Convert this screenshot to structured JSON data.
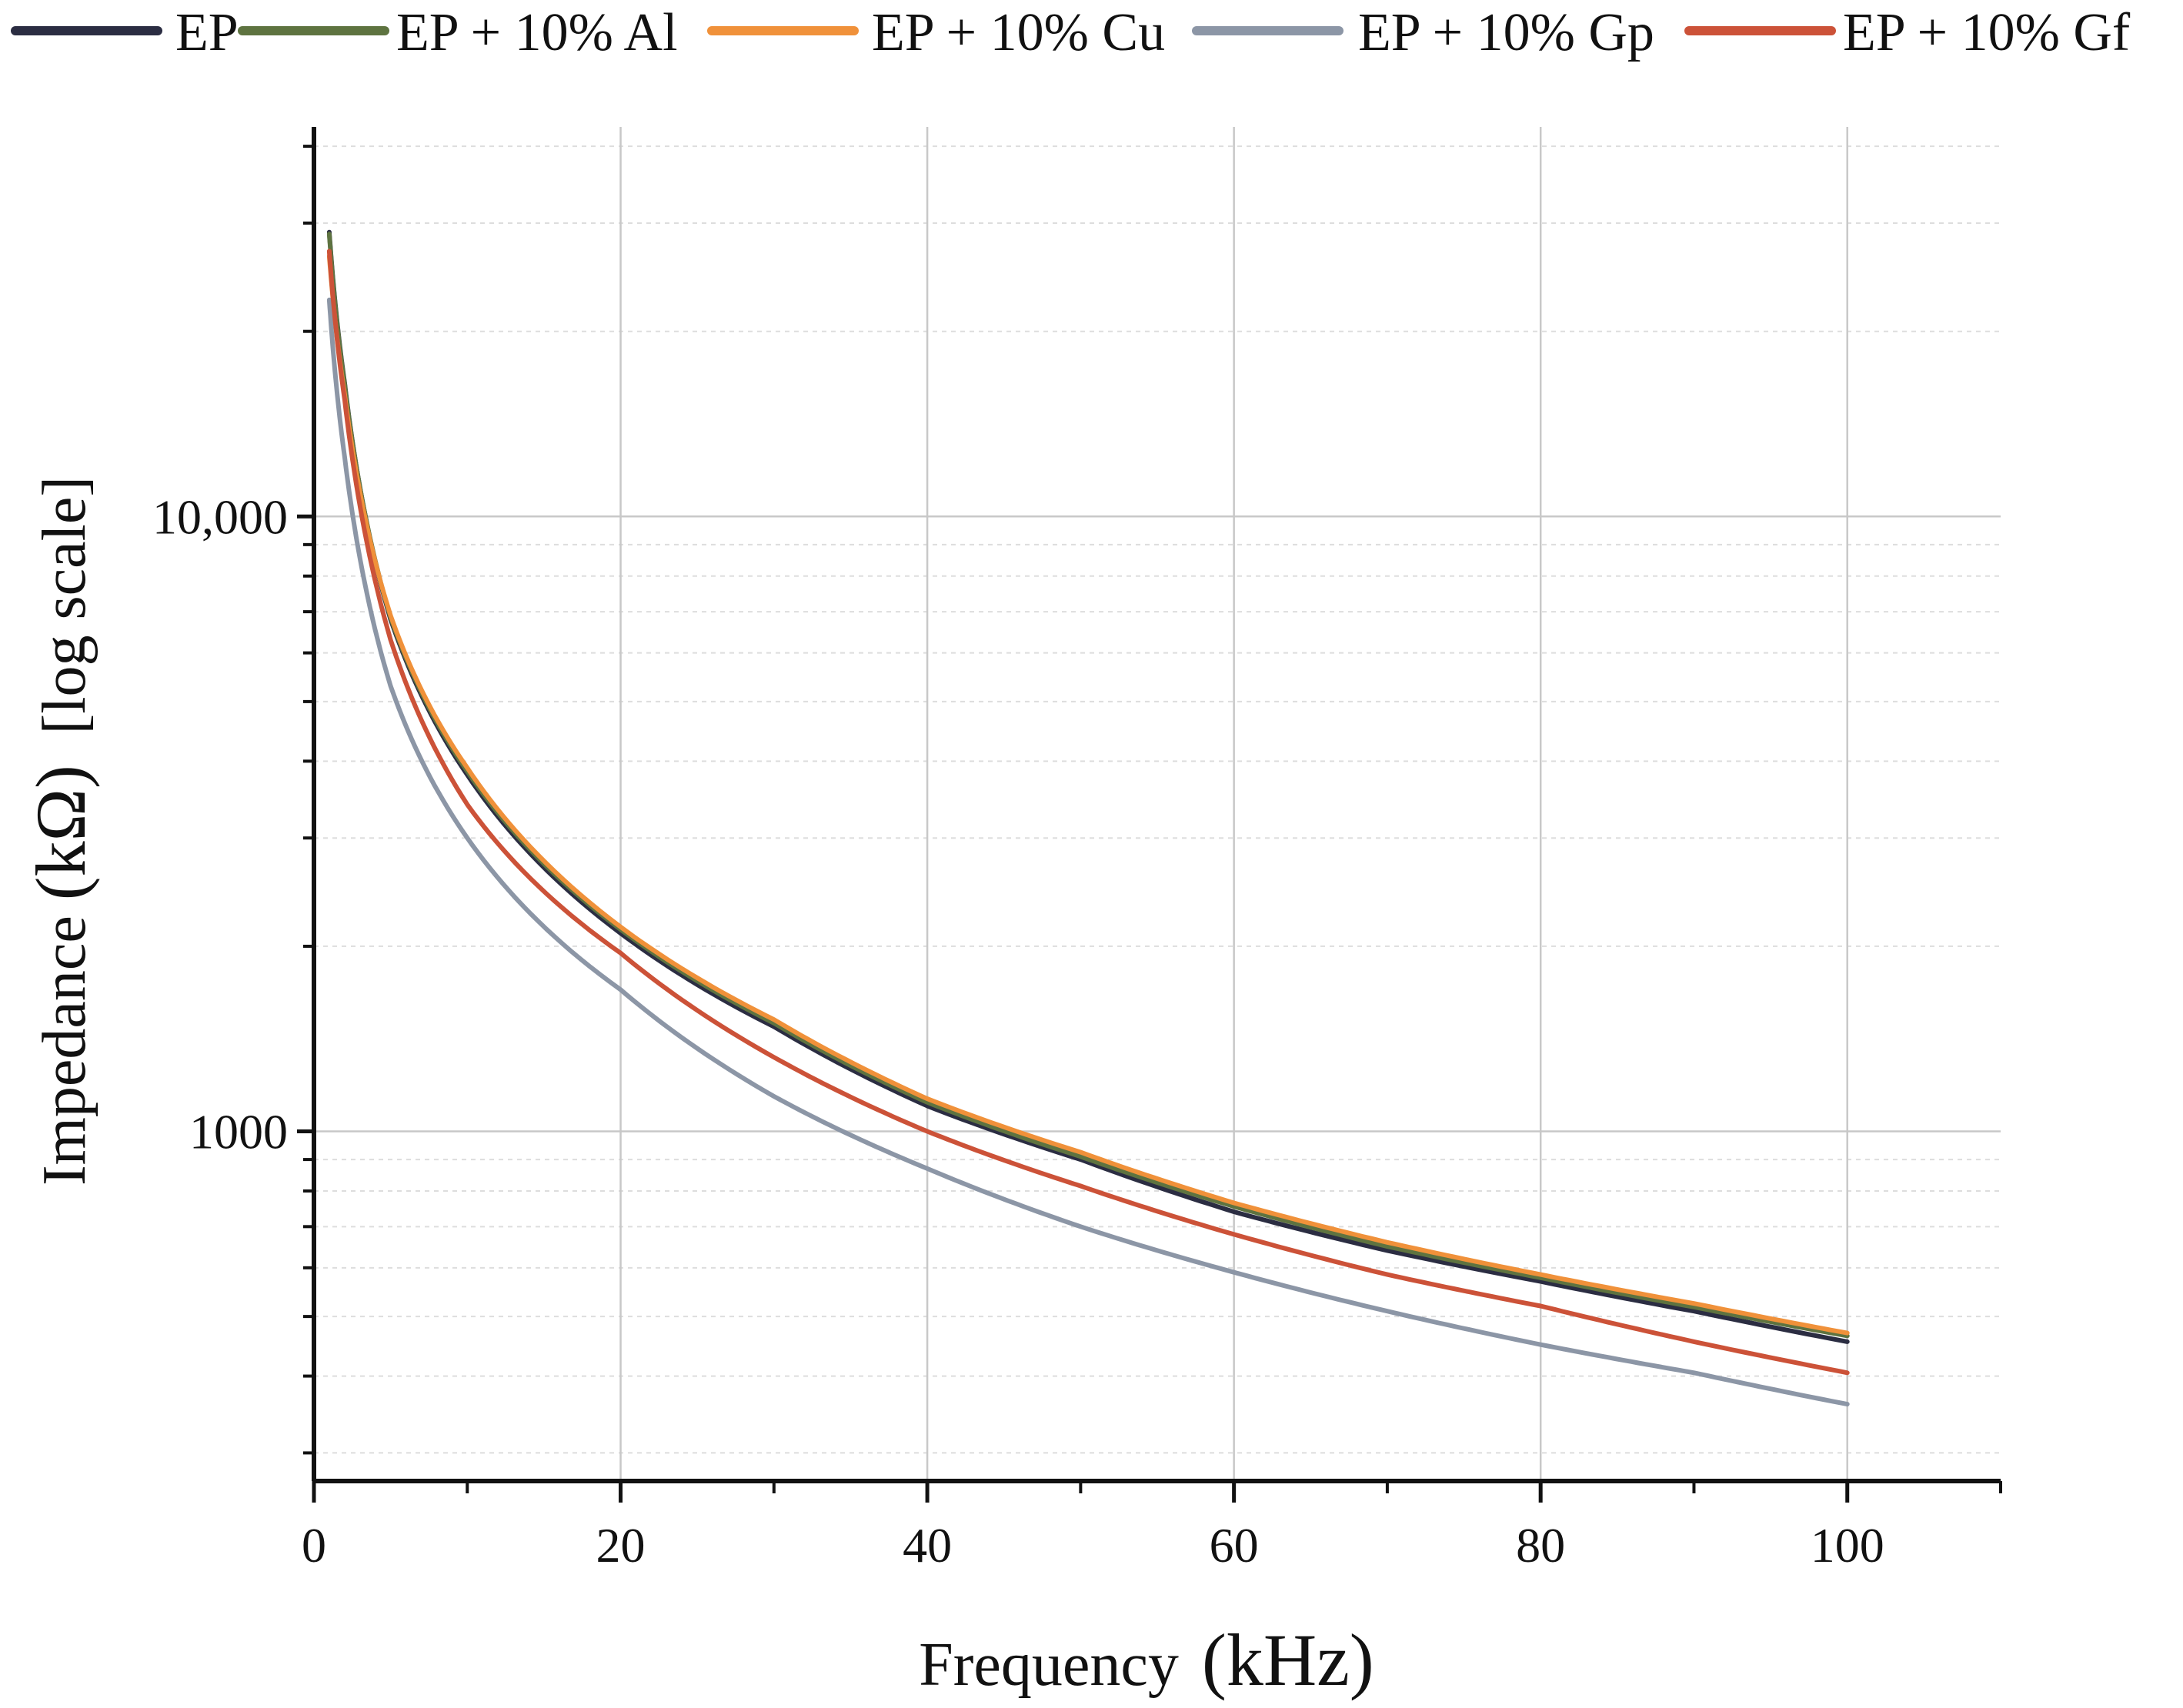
{
  "chart_data": {
    "type": "line",
    "title": "",
    "xlabel_text": "Frequency",
    "xlabel_unit": "(kHz)",
    "ylabel_text": "Impedance",
    "ylabel_unit": "(kΩ)",
    "ylabel_note": "[log scale]",
    "x_scale": "linear",
    "y_scale": "log",
    "xlim": [
      0,
      110
    ],
    "ylim": [
      270,
      43000
    ],
    "x_ticks": [
      0,
      20,
      40,
      60,
      80,
      100
    ],
    "x_tick_labels": [
      "0",
      "20",
      "40",
      "60",
      "80",
      "100"
    ],
    "y_ticks": [
      1000,
      10000
    ],
    "y_tick_labels": [
      "1000",
      "10,000"
    ],
    "grid": true,
    "legend_position": "top",
    "colors": {
      "EP": "#2b2d42",
      "EP + 10% Al": "#5e7340",
      "EP + 10% Cu": "#f0913a",
      "EP + 10% Gp": "#8c96a6",
      "EP + 10% Gf": "#cc5238"
    },
    "series": [
      {
        "name": "EP",
        "x": [
          1,
          2,
          5,
          10,
          20,
          30,
          40,
          50,
          60,
          70,
          80,
          90,
          100
        ],
        "values": [
          29000,
          16500,
          6800,
          3800,
          2100,
          1480,
          1100,
          900,
          740,
          640,
          570,
          510,
          455
        ]
      },
      {
        "name": "EP + 10% Al",
        "x": [
          1,
          2,
          5,
          10,
          20,
          30,
          40,
          50,
          60,
          70,
          80,
          90,
          100
        ],
        "values": [
          28800,
          16400,
          6850,
          3850,
          2130,
          1500,
          1115,
          910,
          755,
          650,
          578,
          518,
          465
        ]
      },
      {
        "name": "EP + 10% Cu",
        "x": [
          1,
          2,
          5,
          10,
          20,
          30,
          40,
          50,
          60,
          70,
          80,
          90,
          100
        ],
        "values": [
          26500,
          15800,
          6900,
          3900,
          2150,
          1520,
          1130,
          925,
          765,
          660,
          585,
          525,
          470
        ]
      },
      {
        "name": "EP + 10% Gp",
        "x": [
          1,
          2,
          5,
          10,
          20,
          30,
          40,
          50,
          60,
          70,
          80,
          90,
          100
        ],
        "values": [
          22500,
          12500,
          5300,
          3000,
          1700,
          1140,
          870,
          700,
          590,
          510,
          450,
          405,
          360
        ]
      },
      {
        "name": "EP + 10% Gf",
        "x": [
          1,
          2,
          5,
          10,
          20,
          30,
          40,
          50,
          60,
          70,
          80,
          90,
          100
        ],
        "values": [
          27000,
          15500,
          6300,
          3400,
          1950,
          1320,
          1000,
          815,
          680,
          585,
          520,
          455,
          405
        ]
      }
    ]
  }
}
